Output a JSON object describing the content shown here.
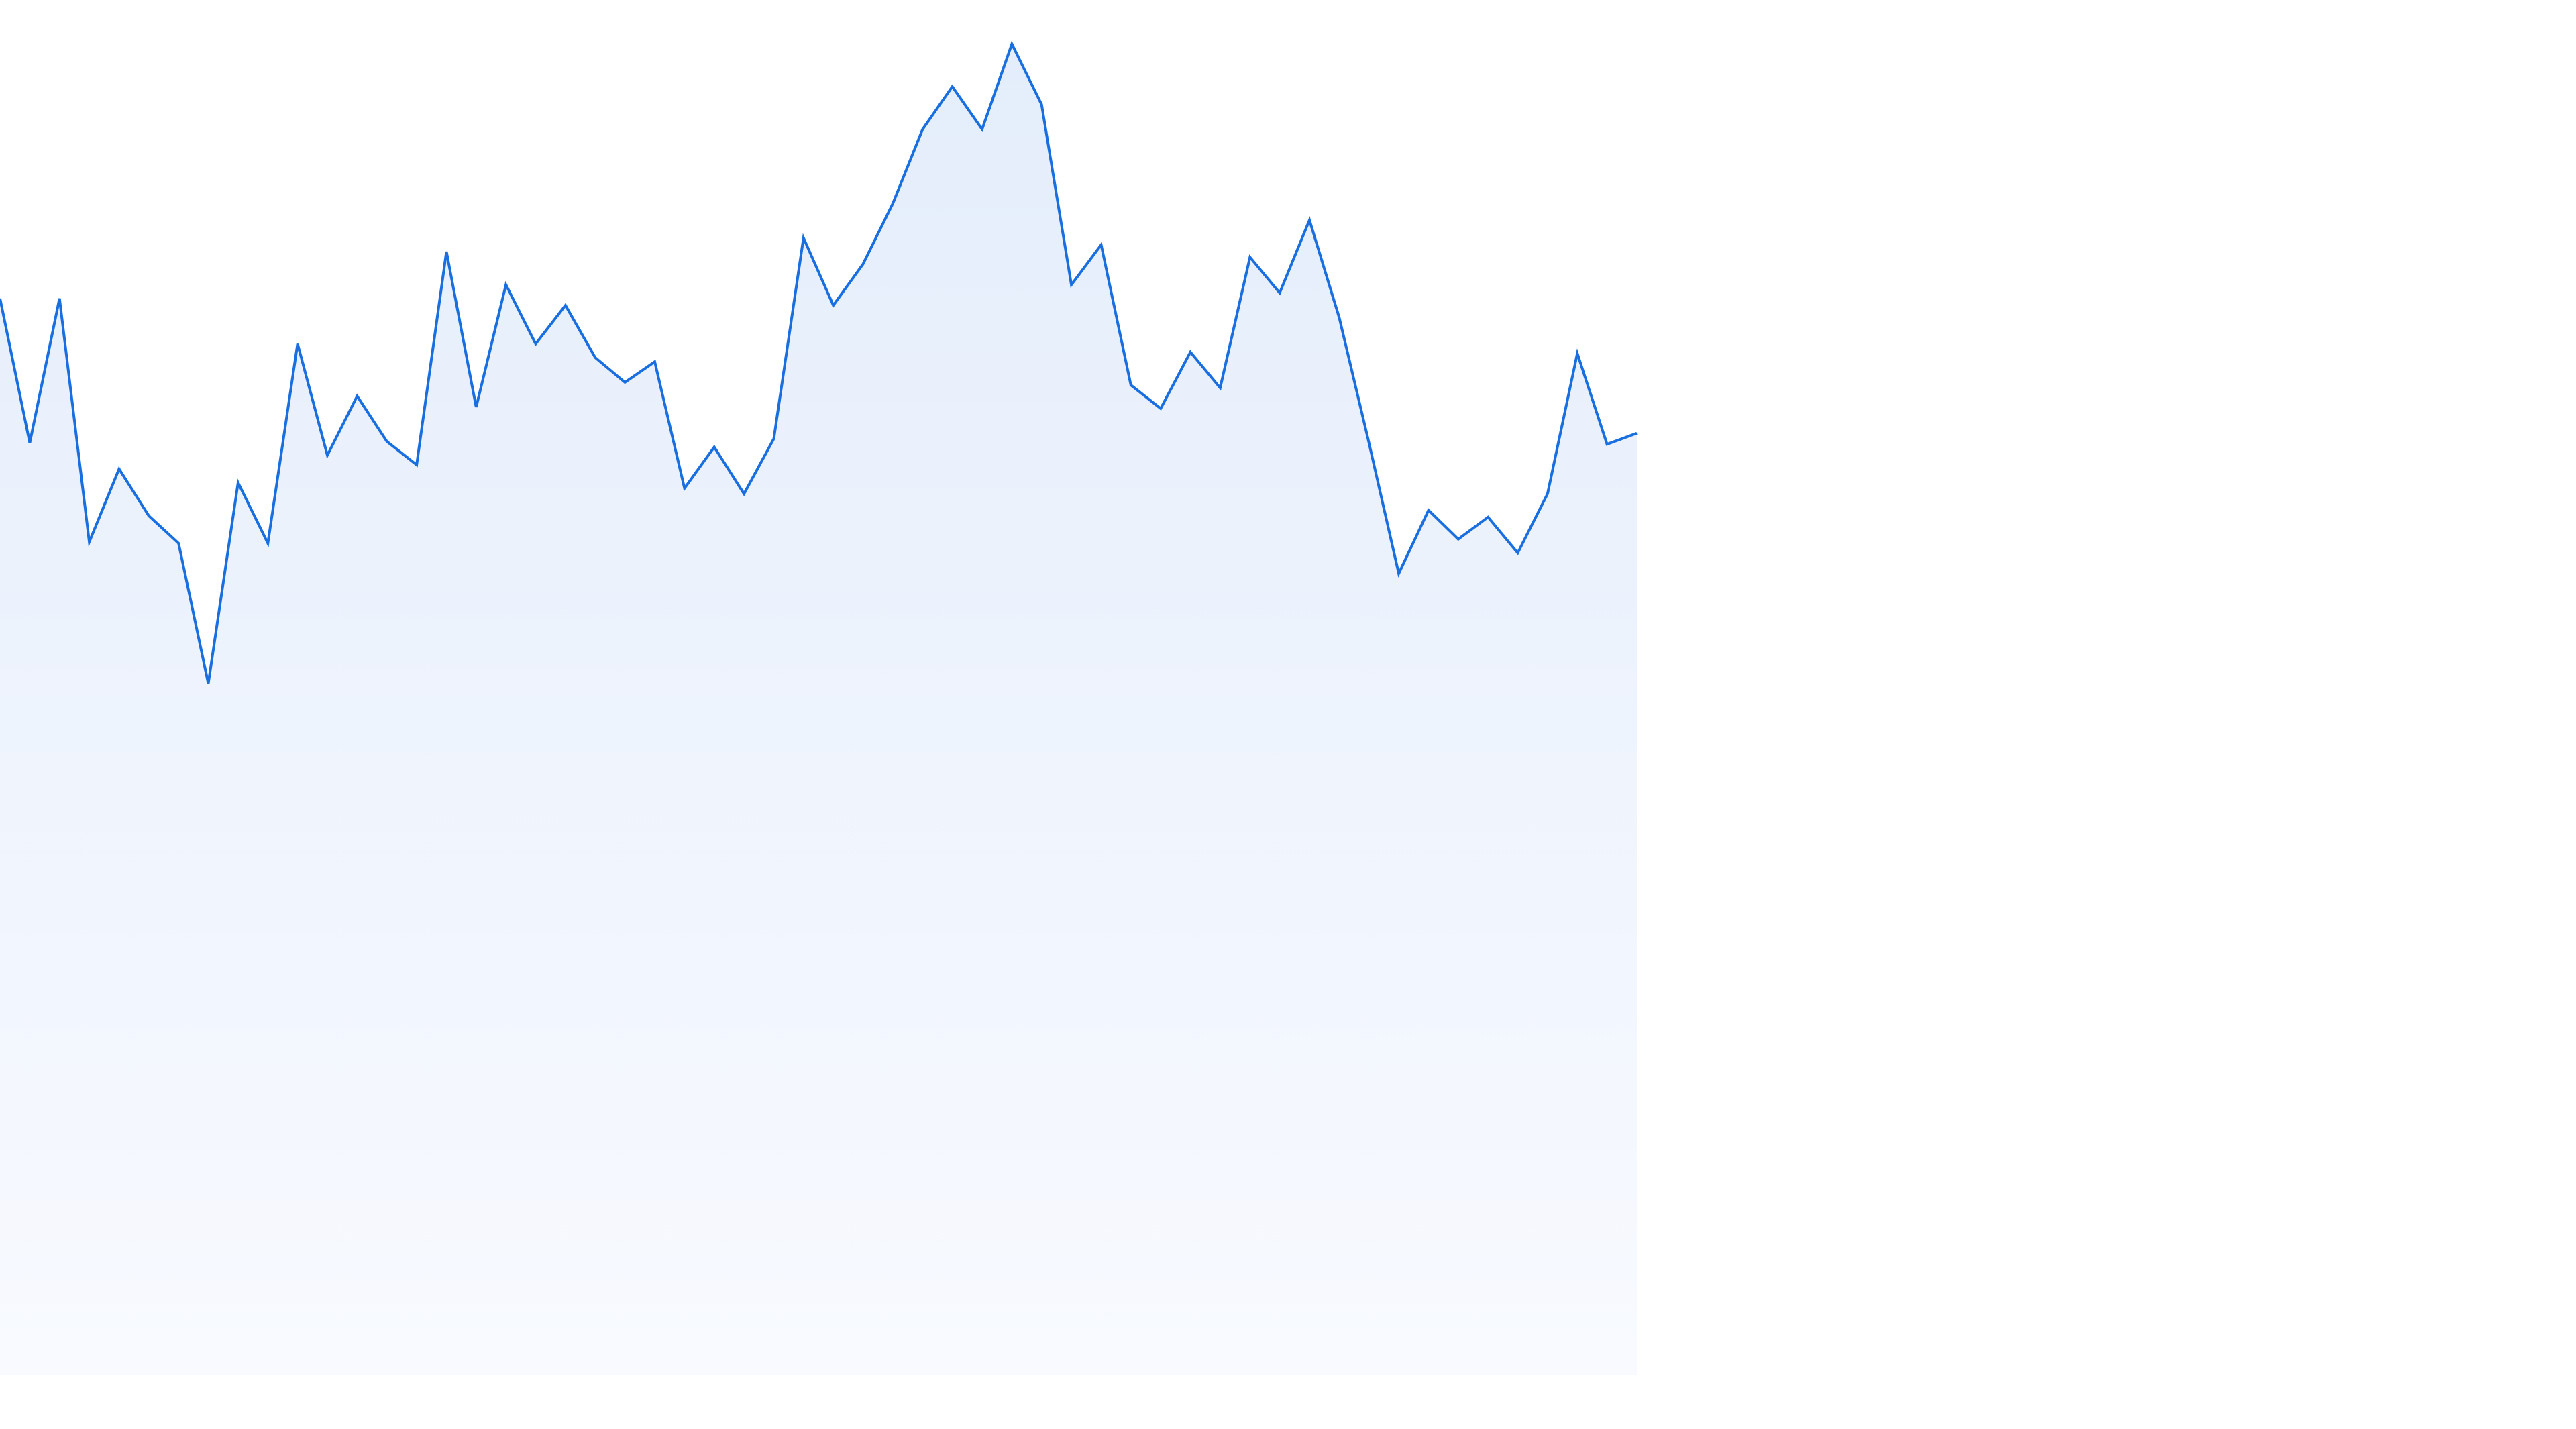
{
  "chart_data": {
    "type": "area",
    "title": "",
    "xlabel": "",
    "ylabel": "",
    "grid": false,
    "legend": false,
    "colors": {
      "line": "#1a6fe0",
      "fill_top": "#e4edfb",
      "fill_bottom": "#f8faff"
    },
    "ylim": [
      0,
      100
    ],
    "series": [
      {
        "values": [
          78.3,
          67.8,
          78.3,
          60.6,
          65.9,
          62.5,
          60.5,
          50.3,
          64.9,
          60.5,
          75.0,
          66.9,
          71.2,
          67.9,
          66.2,
          81.7,
          70.4,
          79.3,
          75.0,
          77.8,
          74.0,
          72.2,
          73.7,
          64.5,
          67.5,
          64.1,
          68.1,
          82.7,
          77.8,
          80.8,
          85.2,
          90.6,
          93.7,
          90.6,
          96.8,
          92.4,
          79.3,
          82.2,
          72.0,
          70.3,
          74.4,
          71.8,
          81.3,
          78.7,
          84.0,
          76.9,
          67.8,
          58.3,
          62.9,
          60.8,
          62.4,
          59.8,
          64.1,
          74.3,
          67.7,
          68.5
        ]
      }
    ]
  }
}
